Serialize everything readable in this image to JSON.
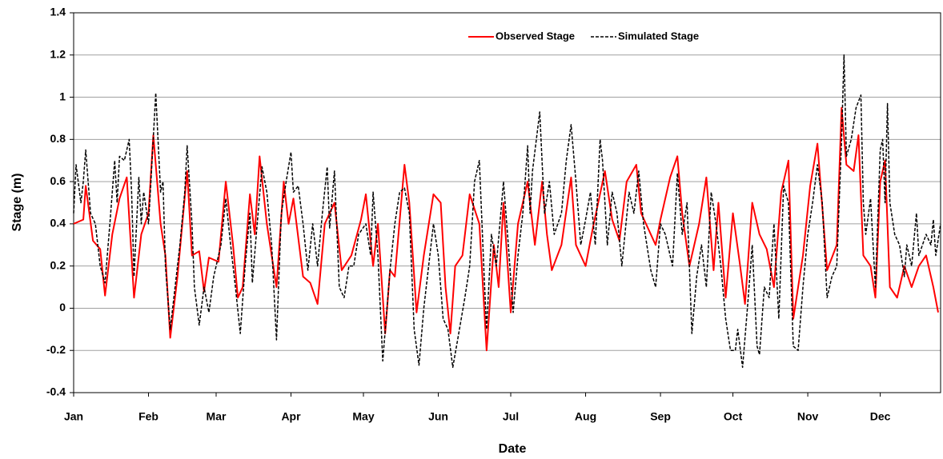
{
  "chart_data": {
    "type": "line",
    "x_label": "Date",
    "y_label": "Stage (m)",
    "xlim": [
      0,
      359
    ],
    "xticks": [
      {
        "value": 0,
        "label": "Jan"
      },
      {
        "value": 31,
        "label": "Feb"
      },
      {
        "value": 59,
        "label": "Mar"
      },
      {
        "value": 90,
        "label": "Apr"
      },
      {
        "value": 120,
        "label": "May"
      },
      {
        "value": 151,
        "label": "Jun"
      },
      {
        "value": 181,
        "label": "Jul"
      },
      {
        "value": 212,
        "label": "Aug"
      },
      {
        "value": 243,
        "label": "Sep"
      },
      {
        "value": 273,
        "label": "Oct"
      },
      {
        "value": 304,
        "label": "Nov"
      },
      {
        "value": 334,
        "label": "Dec"
      }
    ],
    "ylim": [
      -0.4,
      1.4
    ],
    "yticks": [
      -0.4,
      -0.2,
      0,
      0.2,
      0.4,
      0.6,
      0.8,
      1,
      1.2,
      1.4
    ],
    "grid": true,
    "legend": "upper center",
    "series": [
      {
        "name": "Observed Stage",
        "color": "#ff0000",
        "dash": "solid",
        "x": [
          0,
          4,
          5,
          8,
          11,
          13,
          16,
          19,
          22,
          25,
          28,
          31,
          33,
          36,
          38,
          40,
          43,
          47,
          49,
          52,
          54,
          56,
          60,
          63,
          66,
          68,
          70,
          73,
          75,
          77,
          80,
          84,
          87,
          89,
          91,
          95,
          98,
          101,
          104,
          108,
          111,
          115,
          119,
          121,
          124,
          126,
          129,
          131,
          133,
          137,
          139,
          142,
          145,
          149,
          152,
          154,
          156,
          158,
          161,
          164,
          168,
          171,
          174,
          176,
          178,
          181,
          184,
          188,
          191,
          194,
          196,
          198,
          202,
          206,
          208,
          212,
          215,
          220,
          223,
          226,
          229,
          233,
          235,
          239,
          241,
          243,
          247,
          250,
          252,
          255,
          259,
          262,
          265,
          267,
          270,
          273,
          276,
          278,
          281,
          284,
          287,
          290,
          293,
          296,
          298,
          302,
          305,
          308,
          312,
          316,
          318,
          320,
          323,
          325,
          327,
          330,
          332,
          334,
          336,
          338,
          341,
          344,
          347,
          350,
          353,
          356,
          358
        ],
        "values": [
          0.4,
          0.42,
          0.58,
          0.32,
          0.28,
          0.06,
          0.35,
          0.52,
          0.62,
          0.05,
          0.35,
          0.45,
          0.82,
          0.4,
          0.25,
          -0.14,
          0.15,
          0.65,
          0.25,
          0.27,
          0.08,
          0.24,
          0.22,
          0.6,
          0.3,
          0.05,
          0.1,
          0.54,
          0.35,
          0.72,
          0.4,
          0.1,
          0.6,
          0.4,
          0.52,
          0.15,
          0.12,
          0.02,
          0.4,
          0.5,
          0.18,
          0.25,
          0.42,
          0.54,
          0.2,
          0.4,
          -0.12,
          0.18,
          0.15,
          0.68,
          0.5,
          -0.02,
          0.25,
          0.54,
          0.5,
          0.1,
          -0.12,
          0.2,
          0.25,
          0.54,
          0.4,
          -0.2,
          0.3,
          0.1,
          0.5,
          -0.02,
          0.4,
          0.6,
          0.3,
          0.6,
          0.35,
          0.18,
          0.3,
          0.62,
          0.3,
          0.2,
          0.38,
          0.65,
          0.42,
          0.32,
          0.6,
          0.68,
          0.45,
          0.35,
          0.3,
          0.42,
          0.62,
          0.72,
          0.45,
          0.2,
          0.4,
          0.62,
          0.18,
          0.5,
          0.05,
          0.45,
          0.2,
          0.02,
          0.5,
          0.35,
          0.28,
          0.1,
          0.55,
          0.7,
          -0.05,
          0.25,
          0.58,
          0.78,
          0.18,
          0.3,
          0.95,
          0.68,
          0.65,
          0.82,
          0.25,
          0.2,
          0.05,
          0.6,
          0.7,
          0.1,
          0.05,
          0.2,
          0.1,
          0.2,
          0.25,
          0.1,
          -0.02
        ]
      },
      {
        "name": "Simulated Stage",
        "color": "#000000",
        "dash": "dashed",
        "x": [
          0,
          1,
          3,
          4,
          5,
          7,
          9,
          11,
          13,
          15,
          17,
          18,
          19,
          21,
          23,
          24,
          25,
          27,
          28,
          29,
          31,
          32,
          34,
          36,
          37,
          38,
          40,
          42,
          44,
          46,
          47,
          49,
          50,
          52,
          54,
          56,
          58,
          61,
          63,
          65,
          67,
          69,
          71,
          73,
          74,
          76,
          78,
          80,
          82,
          84,
          86,
          88,
          90,
          91,
          93,
          95,
          97,
          99,
          101,
          103,
          105,
          106,
          108,
          110,
          112,
          114,
          116,
          118,
          121,
          123,
          124,
          126,
          128,
          131,
          133,
          135,
          137,
          139,
          141,
          143,
          145,
          147,
          149,
          151,
          153,
          155,
          157,
          159,
          162,
          164,
          166,
          168,
          170,
          171,
          173,
          175,
          178,
          180,
          182,
          184,
          186,
          188,
          189,
          190,
          193,
          195,
          197,
          199,
          202,
          204,
          206,
          208,
          210,
          212,
          214,
          216,
          218,
          219,
          221,
          223,
          225,
          227,
          230,
          232,
          234,
          236,
          239,
          241,
          243,
          245,
          248,
          250,
          252,
          254,
          256,
          258,
          260,
          262,
          264,
          266,
          268,
          270,
          272,
          274,
          275,
          277,
          279,
          281,
          283,
          284,
          286,
          288,
          290,
          292,
          294,
          296,
          298,
          300,
          302,
          304,
          306,
          308,
          310,
          312,
          314,
          316,
          318,
          319,
          320,
          322,
          324,
          326,
          327,
          328,
          330,
          332,
          334,
          335,
          336,
          337,
          338,
          340,
          342,
          344,
          345,
          347,
          349,
          350,
          353,
          355,
          356,
          357,
          359
        ],
        "values": [
          0.45,
          0.68,
          0.5,
          0.6,
          0.75,
          0.45,
          0.4,
          0.2,
          0.12,
          0.4,
          0.7,
          0.5,
          0.72,
          0.7,
          0.8,
          0.55,
          0.15,
          0.62,
          0.4,
          0.55,
          0.4,
          0.6,
          1.02,
          0.55,
          0.6,
          0.2,
          -0.1,
          0.1,
          0.3,
          0.55,
          0.77,
          0.4,
          0.1,
          -0.08,
          0.1,
          -0.02,
          0.15,
          0.3,
          0.52,
          0.3,
          0.1,
          -0.12,
          0.2,
          0.45,
          0.12,
          0.4,
          0.67,
          0.55,
          0.3,
          -0.15,
          0.45,
          0.6,
          0.74,
          0.55,
          0.58,
          0.4,
          0.18,
          0.4,
          0.2,
          0.45,
          0.67,
          0.38,
          0.65,
          0.1,
          0.05,
          0.2,
          0.2,
          0.35,
          0.4,
          0.25,
          0.55,
          0.25,
          -0.25,
          0.18,
          0.4,
          0.55,
          0.57,
          0.45,
          -0.1,
          -0.27,
          0.0,
          0.2,
          0.4,
          0.25,
          -0.05,
          -0.1,
          -0.28,
          -0.15,
          0.05,
          0.2,
          0.6,
          0.7,
          0.15,
          -0.1,
          0.35,
          0.2,
          0.6,
          0.3,
          -0.02,
          0.25,
          0.45,
          0.77,
          0.45,
          0.65,
          0.93,
          0.45,
          0.6,
          0.35,
          0.45,
          0.7,
          0.87,
          0.6,
          0.3,
          0.42,
          0.55,
          0.3,
          0.8,
          0.7,
          0.3,
          0.55,
          0.45,
          0.2,
          0.55,
          0.45,
          0.65,
          0.4,
          0.18,
          0.1,
          0.4,
          0.35,
          0.2,
          0.64,
          0.35,
          0.5,
          -0.12,
          0.15,
          0.3,
          0.1,
          0.55,
          0.4,
          0.2,
          -0.05,
          -0.2,
          -0.2,
          -0.1,
          -0.28,
          0.0,
          0.3,
          -0.18,
          -0.22,
          0.1,
          0.05,
          0.4,
          -0.05,
          0.58,
          0.5,
          -0.18,
          -0.2,
          0.1,
          0.35,
          0.5,
          0.68,
          0.5,
          0.05,
          0.15,
          0.2,
          0.8,
          1.2,
          0.72,
          0.8,
          0.95,
          1.01,
          0.5,
          0.35,
          0.52,
          0.1,
          0.75,
          0.8,
          0.5,
          0.97,
          0.5,
          0.35,
          0.3,
          0.15,
          0.3,
          0.2,
          0.45,
          0.25,
          0.35,
          0.3,
          0.42,
          0.25,
          0.4
        ]
      }
    ]
  }
}
